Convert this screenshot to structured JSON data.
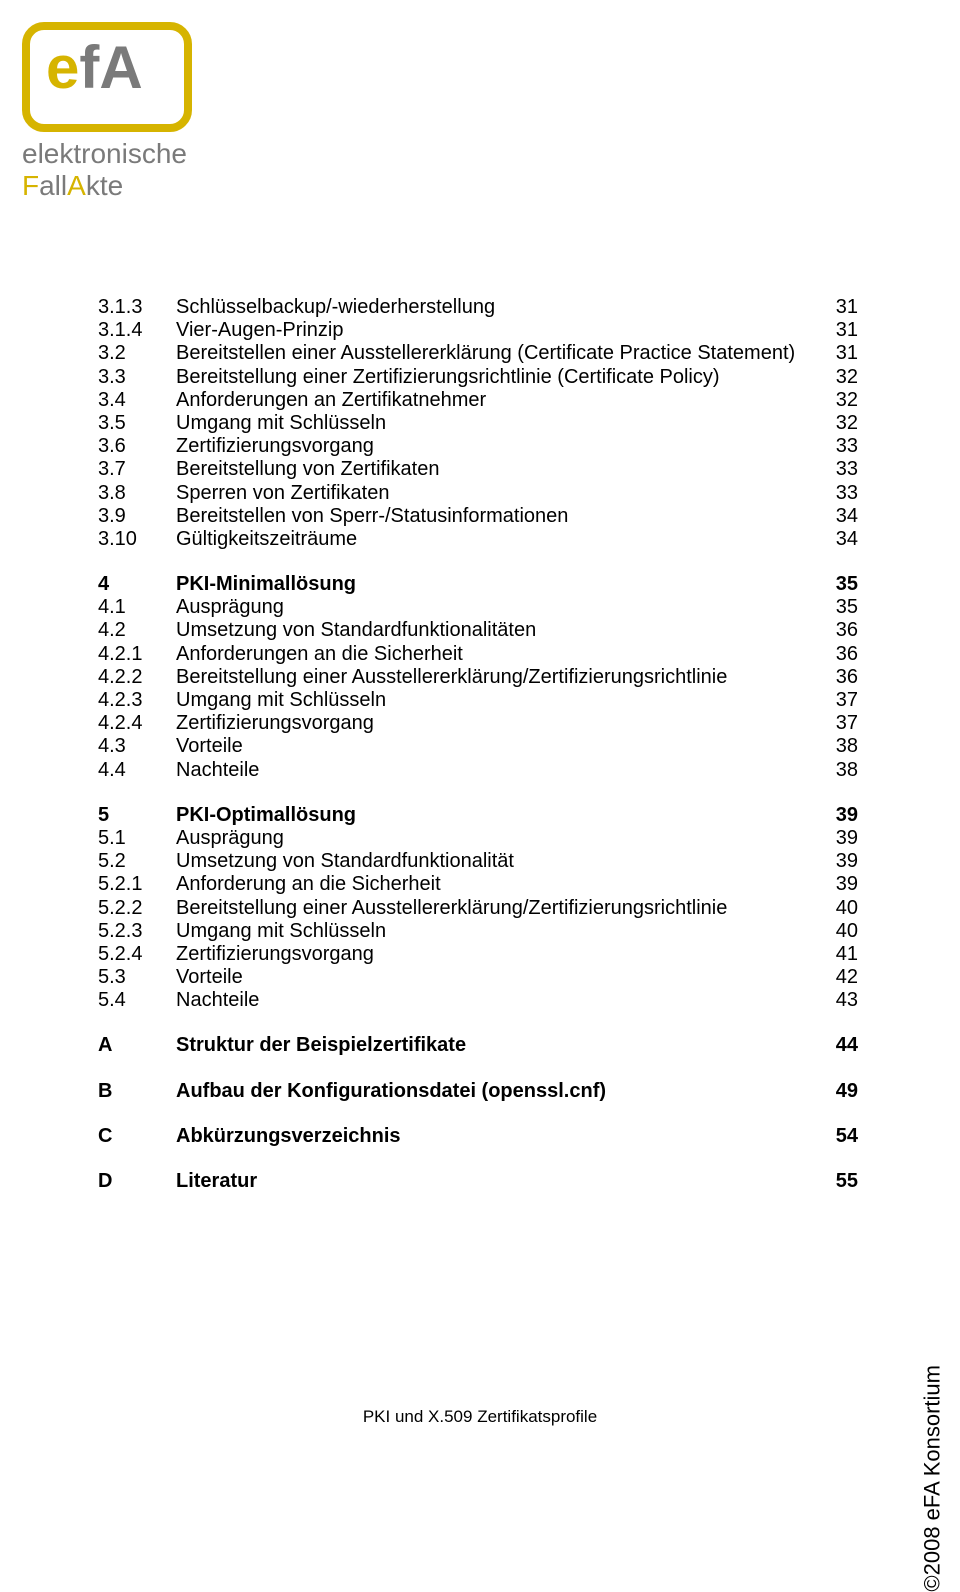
{
  "logo": {
    "acronym_prefix": "e",
    "acronym_rest": "fA",
    "sub1": "elektronische",
    "sub2a": "F",
    "sub2b": "all",
    "sub2c": "A",
    "sub2d": "kte"
  },
  "toc": [
    {
      "num": "3.1.3",
      "title": "Schlüsselbackup/-wiederherstellung",
      "page": "31",
      "bold": false
    },
    {
      "num": "3.1.4",
      "title": "Vier-Augen-Prinzip",
      "page": "31",
      "bold": false
    },
    {
      "num": "3.2",
      "title": "Bereitstellen einer Ausstellererklärung (Certificate Practice Statement)",
      "page": "31",
      "bold": false
    },
    {
      "num": "3.3",
      "title": "Bereitstellung einer Zertifizierungsrichtlinie (Certificate Policy)",
      "page": "32",
      "bold": false
    },
    {
      "num": "3.4",
      "title": "Anforderungen an Zertifikatnehmer",
      "page": "32",
      "bold": false
    },
    {
      "num": "3.5",
      "title": "Umgang mit Schlüsseln",
      "page": "32",
      "bold": false
    },
    {
      "num": "3.6",
      "title": "Zertifizierungsvorgang",
      "page": "33",
      "bold": false
    },
    {
      "num": "3.7",
      "title": "Bereitstellung von Zertifikaten",
      "page": "33",
      "bold": false
    },
    {
      "num": "3.8",
      "title": "Sperren von Zertifikaten",
      "page": "33",
      "bold": false
    },
    {
      "num": "3.9",
      "title": "Bereitstellen von Sperr-/Statusinformationen",
      "page": "34",
      "bold": false
    },
    {
      "num": "3.10",
      "title": "Gültigkeitszeiträume",
      "page": "34",
      "bold": false
    },
    {
      "gap": true
    },
    {
      "num": "4",
      "title": "PKI-Minimallösung",
      "page": "35",
      "bold": true
    },
    {
      "num": "4.1",
      "title": "Ausprägung",
      "page": "35",
      "bold": false
    },
    {
      "num": "4.2",
      "title": "Umsetzung von Standardfunktionalitäten",
      "page": "36",
      "bold": false
    },
    {
      "num": "4.2.1",
      "title": "Anforderungen an die Sicherheit",
      "page": "36",
      "bold": false
    },
    {
      "num": "4.2.2",
      "title": "Bereitstellung einer Ausstellererklärung/Zertifizierungsrichtlinie",
      "page": "36",
      "bold": false
    },
    {
      "num": "4.2.3",
      "title": "Umgang mit Schlüsseln",
      "page": "37",
      "bold": false
    },
    {
      "num": "4.2.4",
      "title": "Zertifizierungsvorgang",
      "page": "37",
      "bold": false
    },
    {
      "num": "4.3",
      "title": "Vorteile",
      "page": "38",
      "bold": false
    },
    {
      "num": "4.4",
      "title": "Nachteile",
      "page": "38",
      "bold": false
    },
    {
      "gap": true
    },
    {
      "num": "5",
      "title": "PKI-Optimallösung",
      "page": "39",
      "bold": true
    },
    {
      "num": "5.1",
      "title": "Ausprägung",
      "page": "39",
      "bold": false
    },
    {
      "num": "5.2",
      "title": "Umsetzung von Standardfunktionalität",
      "page": "39",
      "bold": false
    },
    {
      "num": "5.2.1",
      "title": "Anforderung an die Sicherheit",
      "page": "39",
      "bold": false
    },
    {
      "num": "5.2.2",
      "title": "Bereitstellung einer Ausstellererklärung/Zertifizierungsrichtlinie",
      "page": "40",
      "bold": false
    },
    {
      "num": "5.2.3",
      "title": "Umgang mit Schlüsseln",
      "page": "40",
      "bold": false
    },
    {
      "num": "5.2.4",
      "title": "Zertifizierungsvorgang",
      "page": "41",
      "bold": false
    },
    {
      "num": "5.3",
      "title": "Vorteile",
      "page": "42",
      "bold": false
    },
    {
      "num": "5.4",
      "title": "Nachteile",
      "page": "43",
      "bold": false
    },
    {
      "gap": true
    },
    {
      "num": "A",
      "title": "Struktur der Beispielzertifikate",
      "page": "44",
      "bold": true
    },
    {
      "gap": true
    },
    {
      "num": "B",
      "title": "Aufbau der Konfigurationsdatei (openssl.cnf)",
      "page": "49",
      "bold": true
    },
    {
      "gap": true
    },
    {
      "num": "C",
      "title": "Abkürzungsverzeichnis",
      "page": "54",
      "bold": true
    },
    {
      "gap": true
    },
    {
      "num": "D",
      "title": "Literatur",
      "page": "55",
      "bold": true
    }
  ],
  "side": "©2008 eFA Konsortium",
  "footer": "PKI und X.509 Zertifikatsprofile"
}
